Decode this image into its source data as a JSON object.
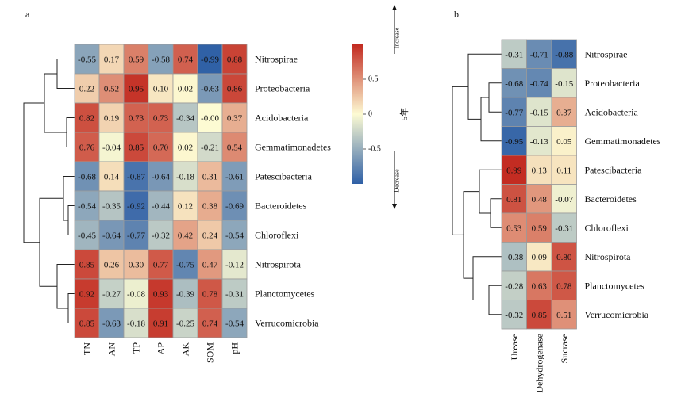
{
  "panel_labels": {
    "a": "a",
    "b": "b"
  },
  "legend": {
    "title": "5年",
    "ticks": [
      "0.5",
      "0",
      "-0.5"
    ],
    "increase_label": "Increase",
    "decrease_label": "Decrease",
    "colors": {
      "high": "#c22a20",
      "mid": "#fdfbd3",
      "low": "#2e5fa6"
    }
  },
  "chart_data": [
    {
      "type": "heatmap",
      "panel": "a",
      "rows": [
        "Nitrospirae",
        "Proteobacteria",
        "Acidobacteria",
        "Gemmatimonadetes",
        "Patescibacteria",
        "Bacteroidetes",
        "Chloroflexi",
        "Nitrospirota",
        "Planctomycetes",
        "Verrucomicrobia"
      ],
      "columns": [
        "TN",
        "AN",
        "TP",
        "AP",
        "AK",
        "SOM",
        "pH"
      ],
      "values": [
        [
          -0.55,
          0.17,
          0.59,
          -0.58,
          0.74,
          -0.99,
          0.88
        ],
        [
          0.22,
          0.52,
          0.95,
          0.1,
          0.02,
          -0.63,
          0.86
        ],
        [
          0.82,
          0.19,
          0.73,
          0.73,
          -0.34,
          -0.0,
          0.37
        ],
        [
          0.76,
          -0.04,
          0.85,
          0.7,
          0.02,
          -0.21,
          0.54
        ],
        [
          -0.68,
          0.14,
          -0.87,
          -0.64,
          -0.18,
          0.31,
          -0.61
        ],
        [
          -0.54,
          -0.35,
          -0.92,
          -0.44,
          0.12,
          0.38,
          -0.69
        ],
        [
          -0.45,
          -0.64,
          -0.77,
          -0.32,
          0.42,
          0.24,
          -0.54
        ],
        [
          0.85,
          0.26,
          0.3,
          0.77,
          -0.75,
          0.47,
          -0.12
        ],
        [
          0.92,
          -0.27,
          -0.08,
          0.93,
          -0.39,
          0.78,
          -0.31
        ],
        [
          0.85,
          -0.63,
          -0.18,
          0.91,
          -0.25,
          0.74,
          -0.54
        ]
      ],
      "value_labels": [
        [
          "-0.55",
          "0.17",
          "0.59",
          "-0.58",
          "0.74",
          "-0.99",
          "0.88"
        ],
        [
          "0.22",
          "0.52",
          "0.95",
          "0.10",
          "0.02",
          "-0.63",
          "0.86"
        ],
        [
          "0.82",
          "0.19",
          "0.73",
          "0.73",
          "-0.34",
          "-0.00",
          "0.37"
        ],
        [
          "0.76",
          "-0.04",
          "0.85",
          "0.70",
          "0.02",
          "-0.21",
          "0.54"
        ],
        [
          "-0.68",
          "0.14",
          "-0.87",
          "-0.64",
          "-0.18",
          "0.31",
          "-0.61"
        ],
        [
          "-0.54",
          "-0.35",
          "-0.92",
          "-0.44",
          "0.12",
          "0.38",
          "-0.69"
        ],
        [
          "-0.45",
          "-0.64",
          "-0.77",
          "-0.32",
          "0.42",
          "0.24",
          "-0.54"
        ],
        [
          "0.85",
          "0.26",
          "0.30",
          "0.77",
          "-0.75",
          "0.47",
          "-0.12"
        ],
        [
          "0.92",
          "-0.27",
          "-0.08",
          "0.93",
          "-0.39",
          "0.78",
          "-0.31"
        ],
        [
          "0.85",
          "-0.63",
          "-0.18",
          "0.91",
          "-0.25",
          "0.74",
          "-0.54"
        ]
      ],
      "color_range": [
        -1,
        1
      ]
    },
    {
      "type": "heatmap",
      "panel": "b",
      "rows": [
        "Nitrospirae",
        "Proteobacteria",
        "Acidobacteria",
        "Gemmatimonadetes",
        "Patescibacteria",
        "Bacteroidetes",
        "Chloroflexi",
        "Nitrospirota",
        "Planctomycetes",
        "Verrucomicrobia"
      ],
      "columns": [
        "Urease",
        "Dehydrogenase",
        "Sucrase"
      ],
      "values": [
        [
          -0.31,
          -0.71,
          -0.88
        ],
        [
          -0.68,
          -0.74,
          -0.15
        ],
        [
          -0.77,
          -0.15,
          0.37
        ],
        [
          -0.95,
          -0.13,
          0.05
        ],
        [
          0.99,
          0.13,
          0.11
        ],
        [
          0.81,
          0.48,
          -0.07
        ],
        [
          0.53,
          0.59,
          -0.31
        ],
        [
          -0.38,
          0.09,
          0.8
        ],
        [
          -0.28,
          0.63,
          0.78
        ],
        [
          -0.32,
          0.85,
          0.51
        ]
      ],
      "value_labels": [
        [
          "-0.31",
          "-0.71",
          "-0.88"
        ],
        [
          "-0.68",
          "-0.74",
          "-0.15"
        ],
        [
          "-0.77",
          "-0.15",
          "0.37"
        ],
        [
          "-0.95",
          "-0.13",
          "0.05"
        ],
        [
          "0.99",
          "0.13",
          "0.11"
        ],
        [
          "0.81",
          "0.48",
          "-0.07"
        ],
        [
          "0.53",
          "0.59",
          "-0.31"
        ],
        [
          "-0.38",
          "0.09",
          "0.80"
        ],
        [
          "-0.28",
          "0.63",
          "0.78"
        ],
        [
          "-0.32",
          "0.85",
          "0.51"
        ]
      ],
      "color_range": [
        -1,
        1
      ]
    }
  ]
}
